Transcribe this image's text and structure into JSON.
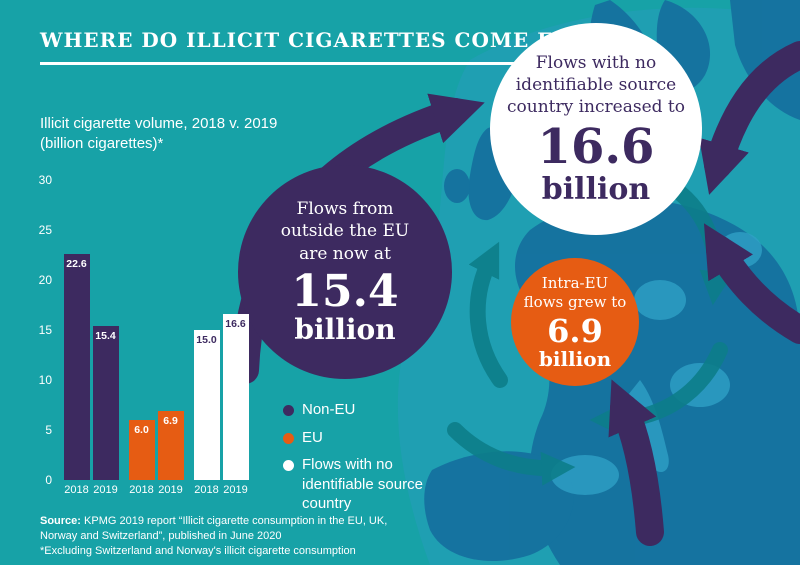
{
  "title": "WHERE DO ILLICIT CIGARETTES COME FROM?",
  "colors": {
    "background": "#17a2a7",
    "purple": "#3d2a60",
    "orange": "#e65c13",
    "white": "#ffffff",
    "map_land": "#15719f",
    "map_light": "#2fa0c6",
    "swirl_arrow": "#0d7e8a"
  },
  "chart": {
    "subtitle": "Illicit cigarette volume, 2018 v. 2019\n(billion cigarettes)*"
  },
  "chart_data": {
    "type": "bar",
    "title": "Illicit cigarette volume, 2018 v. 2019 (billion cigarettes)*",
    "ylim": [
      0,
      30
    ],
    "yticks": [
      0,
      5,
      10,
      15,
      20,
      25,
      30
    ],
    "categories": [
      "2018",
      "2019"
    ],
    "series": [
      {
        "name": "Non-EU",
        "color": "#3d2a60",
        "text_color": "#ffffff",
        "values": [
          22.6,
          15.4
        ],
        "labels": [
          "22.6",
          "15.4"
        ]
      },
      {
        "name": "EU",
        "color": "#e65c13",
        "text_color": "#ffffff",
        "values": [
          6.0,
          6.9
        ],
        "labels": [
          "6.0",
          "6.9"
        ]
      },
      {
        "name": "Flows with no identifiable source country",
        "color": "#ffffff",
        "text_color": "#3d2a60",
        "values": [
          15.0,
          16.6
        ],
        "labels": [
          "15.0",
          "16.6"
        ]
      }
    ],
    "legend_position": "below-right",
    "grid": false
  },
  "legend": [
    {
      "label": "Non-EU",
      "color": "#3d2a60"
    },
    {
      "label": "EU",
      "color": "#e65c13"
    },
    {
      "label": "Flows with no identifiable source country",
      "color": "#ffffff"
    }
  ],
  "callouts": {
    "purple": {
      "lines": "Flows from\noutside the EU\nare now at",
      "value": "15.4",
      "unit": "billion"
    },
    "white": {
      "lines": "Flows with no\nidentifiable source\ncountry increased to",
      "value": "16.6",
      "unit": "billion"
    },
    "orange": {
      "lines": "Intra-EU\nflows grew to",
      "value": "6.9",
      "unit": "billion"
    }
  },
  "footer": {
    "source_bold": "Source:",
    "source_rest": " KPMG 2019 report “Illicit cigarette consumption in the EU, UK,\nNorway and Switzerland”, published in June 2020",
    "footnote": "*Excluding Switzerland and Norway's illicit cigarette consumption"
  }
}
